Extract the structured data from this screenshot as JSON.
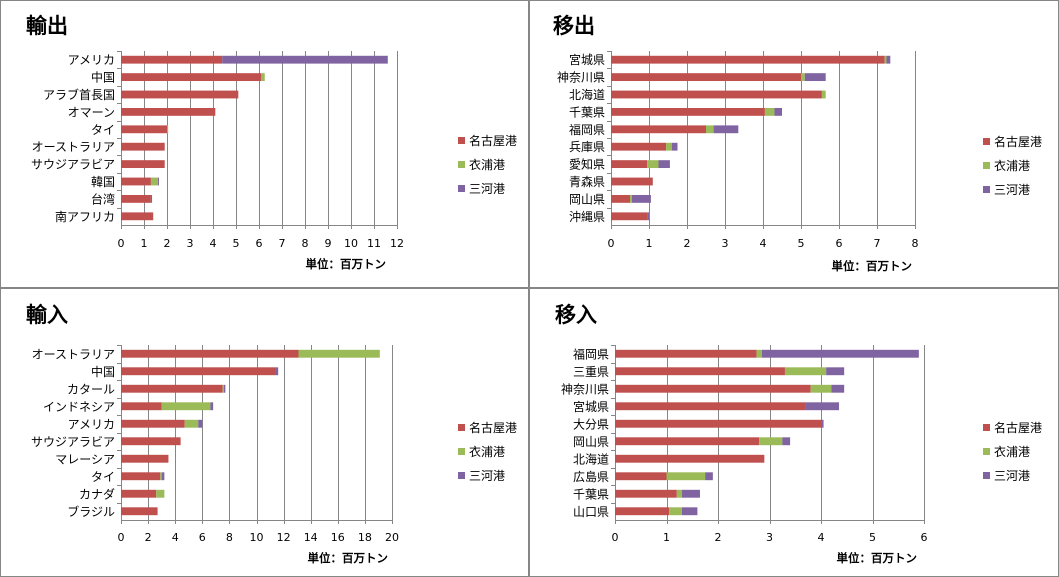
{
  "colors": {
    "border": "#868686",
    "grid": "#868686",
    "axis": "#868686"
  },
  "chart_data": [
    {
      "type": "bar",
      "orientation": "horizontal",
      "stacked": true,
      "title": "輸出",
      "categories": [
        "アメリカ",
        "中国",
        "アラブ首長国",
        "オマーン",
        "タイ",
        "オーストラリア",
        "サウジアラビア",
        "韓国",
        "台湾",
        "南アフリカ"
      ],
      "series": [
        {
          "name": "名古屋港",
          "color": "#C0504D",
          "values": [
            4.4,
            6.1,
            5.1,
            4.1,
            2.0,
            1.9,
            1.9,
            1.3,
            1.3,
            1.4
          ]
        },
        {
          "name": "衣浦港",
          "color": "#9BBB59",
          "values": [
            0.0,
            0.15,
            0.0,
            0.0,
            0.05,
            0.0,
            0.0,
            0.3,
            0.0,
            0.0
          ]
        },
        {
          "name": "三河港",
          "color": "#8064A2",
          "values": [
            7.2,
            0.0,
            0.0,
            0.0,
            0.0,
            0.0,
            0.0,
            0.05,
            0.05,
            0.0
          ]
        }
      ],
      "xlim": [
        0,
        12
      ],
      "xticks": [
        0,
        1,
        2,
        3,
        4,
        5,
        6,
        7,
        8,
        9,
        10,
        11,
        12
      ],
      "unit_label": "単位：百万トン",
      "grid": true,
      "legend_position": "right"
    },
    {
      "type": "bar",
      "orientation": "horizontal",
      "stacked": true,
      "title": "移出",
      "categories": [
        "宮城県",
        "神奈川県",
        "北海道",
        "千葉県",
        "福岡県",
        "兵庫県",
        "愛知県",
        "青森県",
        "岡山県",
        "沖縄県"
      ],
      "series": [
        {
          "name": "名古屋港",
          "color": "#C0504D",
          "values": [
            7.2,
            5.0,
            5.55,
            4.05,
            2.5,
            1.45,
            0.95,
            1.1,
            0.5,
            0.95
          ]
        },
        {
          "name": "衣浦港",
          "color": "#9BBB59",
          "values": [
            0.05,
            0.1,
            0.1,
            0.25,
            0.2,
            0.15,
            0.3,
            0.0,
            0.05,
            0.0
          ]
        },
        {
          "name": "三河港",
          "color": "#8064A2",
          "values": [
            0.1,
            0.55,
            0.0,
            0.2,
            0.65,
            0.15,
            0.3,
            0.0,
            0.5,
            0.05
          ]
        }
      ],
      "xlim": [
        0,
        8
      ],
      "xticks": [
        0,
        1,
        2,
        3,
        4,
        5,
        6,
        7,
        8
      ],
      "unit_label": "単位：百万トン",
      "grid": true,
      "legend_position": "right"
    },
    {
      "type": "bar",
      "orientation": "horizontal",
      "stacked": true,
      "title": "輸入",
      "categories": [
        "オーストラリア",
        "中国",
        "カタール",
        "インドネシア",
        "アメリカ",
        "サウジアラビア",
        "マレーシア",
        "タイ",
        "カナダ",
        "ブラジル"
      ],
      "series": [
        {
          "name": "名古屋港",
          "color": "#C0504D",
          "values": [
            13.1,
            11.4,
            7.5,
            3.0,
            4.7,
            4.4,
            3.5,
            2.9,
            2.6,
            2.7
          ]
        },
        {
          "name": "衣浦港",
          "color": "#9BBB59",
          "values": [
            6.0,
            0.0,
            0.1,
            3.6,
            1.0,
            0.0,
            0.0,
            0.1,
            0.6,
            0.0
          ]
        },
        {
          "name": "三河港",
          "color": "#8064A2",
          "values": [
            0.0,
            0.2,
            0.1,
            0.2,
            0.3,
            0.0,
            0.0,
            0.2,
            0.0,
            0.0
          ]
        }
      ],
      "xlim": [
        0,
        20
      ],
      "xticks": [
        0,
        2,
        4,
        6,
        8,
        10,
        12,
        14,
        16,
        18,
        20
      ],
      "unit_label": "単位：百万トン",
      "grid": true,
      "legend_position": "right"
    },
    {
      "type": "bar",
      "orientation": "horizontal",
      "stacked": true,
      "title": "移入",
      "categories": [
        "福岡県",
        "三重県",
        "神奈川県",
        "宮城県",
        "大分県",
        "岡山県",
        "北海道",
        "広島県",
        "千葉県",
        "山口県"
      ],
      "series": [
        {
          "name": "名古屋港",
          "color": "#C0504D",
          "values": [
            2.75,
            3.3,
            3.8,
            3.7,
            4.0,
            2.8,
            2.9,
            1.0,
            1.2,
            1.05
          ]
        },
        {
          "name": "衣浦港",
          "color": "#9BBB59",
          "values": [
            0.1,
            0.8,
            0.4,
            0.0,
            0.0,
            0.45,
            0.0,
            0.75,
            0.1,
            0.25
          ]
        },
        {
          "name": "三河港",
          "color": "#8064A2",
          "values": [
            3.05,
            0.35,
            0.25,
            0.65,
            0.05,
            0.15,
            0.0,
            0.15,
            0.35,
            0.3
          ]
        }
      ],
      "xlim": [
        0,
        6
      ],
      "xticks": [
        0,
        1,
        2,
        3,
        4,
        5,
        6
      ],
      "unit_label": "単位：百万トン",
      "grid": true,
      "legend_position": "right"
    }
  ]
}
